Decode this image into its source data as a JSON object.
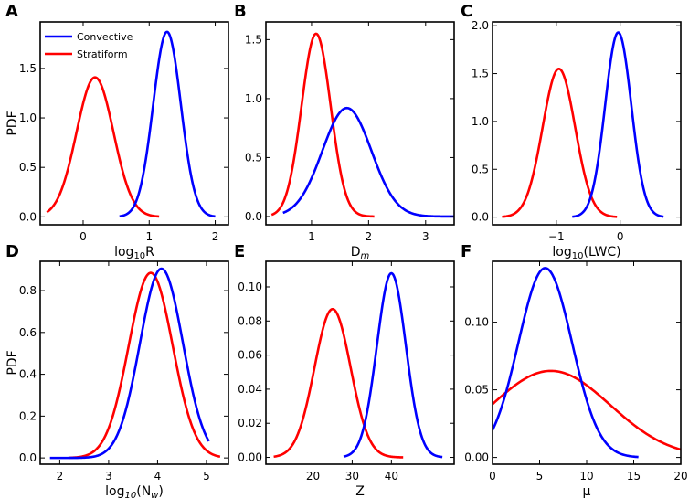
{
  "colors": {
    "convective": "#0000ff",
    "stratiform": "#ff0000"
  },
  "legend": {
    "placement": "top-left of panel A",
    "convective": "Convective",
    "stratiform": "Stratiform"
  },
  "chart_data": [
    {
      "panel": "A",
      "type": "line",
      "xlabel_main": "log",
      "xlabel_sub": "10",
      "xlabel_tail": "R",
      "ylabel": "PDF",
      "xlim": [
        -0.65,
        2.2
      ],
      "ylim": [
        -0.08,
        1.97
      ],
      "xticks": [
        0,
        1,
        2
      ],
      "yticks": [
        0.0,
        0.5,
        1.0,
        1.5
      ],
      "xtick_labels": [
        "0",
        "1",
        "2"
      ],
      "ytick_labels": [
        "0.0",
        "0.5",
        "1.0",
        "1.5"
      ],
      "series": [
        {
          "name": "Convective",
          "mu": 1.27,
          "sigma": 0.21,
          "peak": 1.87,
          "x_range": [
            0.55,
            2.0
          ]
        },
        {
          "name": "Stratiform",
          "mu": 0.18,
          "sigma": 0.28,
          "peak": 1.41,
          "x_range": [
            -0.55,
            1.15
          ]
        }
      ]
    },
    {
      "panel": "B",
      "type": "line",
      "xlabel_main": "D",
      "xlabel_sub": "m",
      "xlabel_tail": "",
      "ylabel": "",
      "xlim": [
        0.2,
        3.5
      ],
      "ylim": [
        -0.07,
        1.65
      ],
      "xticks": [
        1,
        2,
        3
      ],
      "yticks": [
        0.0,
        0.5,
        1.0,
        1.5
      ],
      "xtick_labels": [
        "1",
        "2",
        "3"
      ],
      "ytick_labels": [
        "0.0",
        "0.5",
        "1.0",
        "1.5"
      ],
      "series": [
        {
          "name": "Convective",
          "mu": 1.62,
          "sigma": 0.43,
          "peak": 0.92,
          "x_range": [
            0.5,
            3.5
          ]
        },
        {
          "name": "Stratiform",
          "mu": 1.08,
          "sigma": 0.255,
          "peak": 1.55,
          "x_range": [
            0.3,
            2.1
          ]
        }
      ]
    },
    {
      "panel": "C",
      "type": "line",
      "xlabel_main": "log",
      "xlabel_sub": "10",
      "xlabel_tail": "(LWC)",
      "ylabel": "",
      "xlim": [
        -2.0,
        0.95
      ],
      "ylim": [
        -0.08,
        2.04
      ],
      "xticks": [
        -1,
        0
      ],
      "yticks": [
        0.0,
        0.5,
        1.0,
        1.5,
        2.0
      ],
      "xtick_labels": [
        "−1",
        "0"
      ],
      "ytick_labels": [
        "0.0",
        "0.5",
        "1.0",
        "1.5",
        "2.0"
      ],
      "series": [
        {
          "name": "Convective",
          "mu": -0.03,
          "sigma": 0.205,
          "peak": 1.93,
          "x_range": [
            -0.75,
            0.68
          ]
        },
        {
          "name": "Stratiform",
          "mu": -0.96,
          "sigma": 0.255,
          "peak": 1.55,
          "x_range": [
            -1.85,
            -0.05
          ]
        }
      ]
    },
    {
      "panel": "D",
      "type": "line",
      "xlabel_main": "log",
      "xlabel_sub": "10",
      "xlabel_tail": "(N",
      "xlabel_sub2": "w",
      "xlabel_end": ")",
      "ylabel": "PDF",
      "xlim": [
        1.6,
        5.45
      ],
      "ylim": [
        -0.03,
        0.94
      ],
      "xticks": [
        2,
        3,
        4,
        5
      ],
      "yticks": [
        0.0,
        0.2,
        0.4,
        0.6,
        0.8
      ],
      "xtick_labels": [
        "2",
        "3",
        "4",
        "5"
      ],
      "ytick_labels": [
        "0.0",
        "0.2",
        "0.4",
        "0.6",
        "0.8"
      ],
      "series": [
        {
          "name": "Convective",
          "mu": 4.08,
          "sigma": 0.44,
          "peak": 0.905,
          "x_range": [
            1.8,
            5.05
          ]
        },
        {
          "name": "Stratiform",
          "mu": 3.86,
          "sigma": 0.45,
          "peak": 0.885,
          "x_range": [
            2.2,
            5.28
          ]
        }
      ]
    },
    {
      "panel": "E",
      "type": "line",
      "xlabel_main": "Z",
      "xlabel_sub": "",
      "xlabel_tail": "",
      "ylabel": "",
      "xlim": [
        8,
        56
      ],
      "ylim": [
        -0.004,
        0.115
      ],
      "xticks": [
        20,
        30,
        40
      ],
      "yticks": [
        0.0,
        0.02,
        0.04,
        0.06,
        0.08,
        0.1
      ],
      "xtick_labels": [
        "20",
        "30",
        "40"
      ],
      "ytick_labels": [
        "0.00",
        "0.02",
        "0.04",
        "0.06",
        "0.08",
        "0.10"
      ],
      "series": [
        {
          "name": "Convective",
          "mu": 40.0,
          "sigma": 3.7,
          "peak": 0.108,
          "x_range": [
            27.8,
            53
          ]
        },
        {
          "name": "Stratiform",
          "mu": 25.0,
          "sigma": 4.6,
          "peak": 0.087,
          "x_range": [
            10,
            43
          ]
        }
      ]
    },
    {
      "panel": "F",
      "type": "line",
      "xlabel_main": "μ",
      "xlabel_sub": "",
      "xlabel_tail": "",
      "ylabel": "",
      "xlim": [
        0,
        20
      ],
      "ylim": [
        -0.005,
        0.145
      ],
      "xticks": [
        0,
        5,
        10,
        15,
        20
      ],
      "yticks": [
        0.0,
        0.05,
        0.1
      ],
      "xtick_labels": [
        "0",
        "5",
        "10",
        "15",
        "20"
      ],
      "ytick_labels": [
        "0.00",
        "0.05",
        "0.10"
      ],
      "series": [
        {
          "name": "Convective",
          "mu": 5.6,
          "sigma": 2.85,
          "peak": 0.14,
          "x_range": [
            0,
            15.5
          ]
        },
        {
          "name": "Stratiform",
          "mu": 6.2,
          "sigma": 6.3,
          "peak": 0.064,
          "x_range": [
            0,
            20
          ]
        }
      ]
    }
  ]
}
